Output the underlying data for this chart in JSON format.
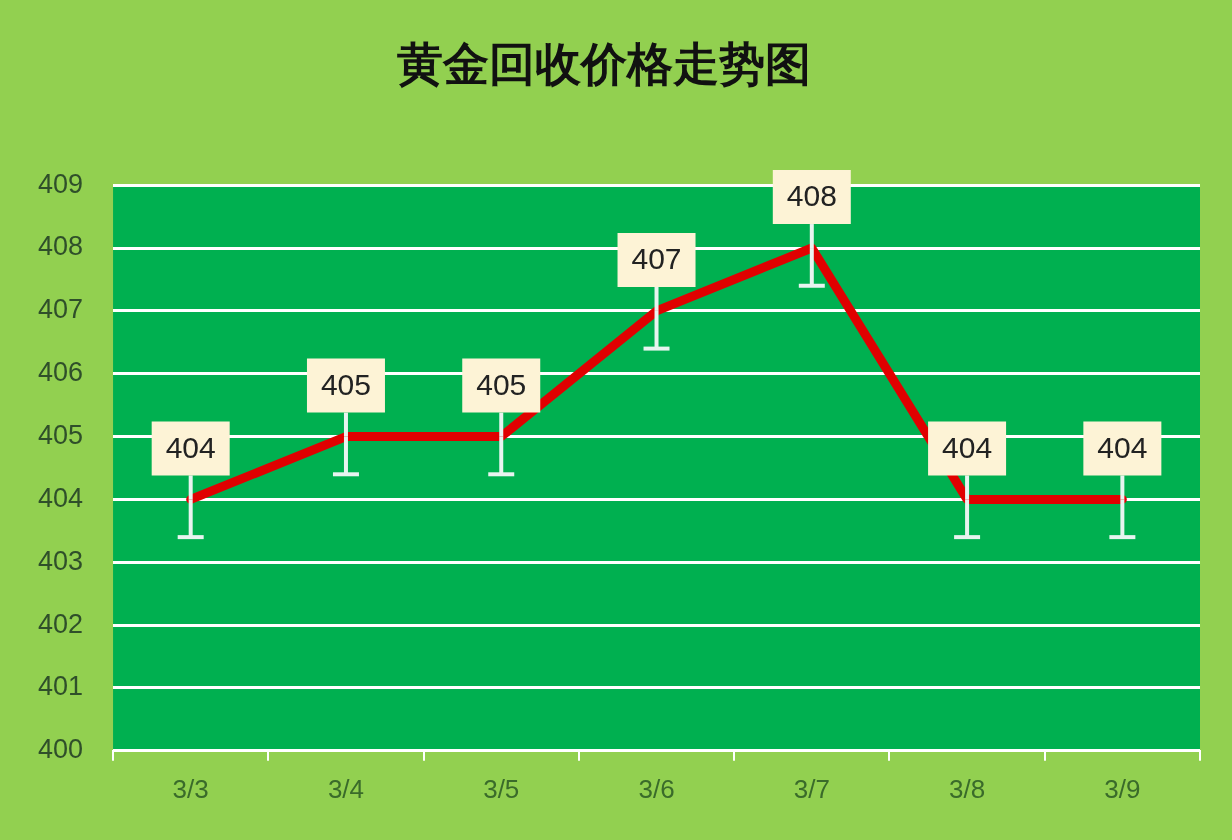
{
  "chart_data": {
    "type": "line",
    "title": "黄金回收价格走势图",
    "categories": [
      "3/3",
      "3/4",
      "3/5",
      "3/6",
      "3/7",
      "3/8",
      "3/9"
    ],
    "series": [
      {
        "color": "#e00000",
        "values": [
          404,
          405,
          405,
          407,
          408,
          404,
          404
        ],
        "errors": [
          [
            403.4,
            404
          ],
          [
            404.4,
            405
          ],
          [
            404.4,
            405
          ],
          [
            406.4,
            407
          ],
          [
            407.4,
            408
          ],
          [
            403.4,
            404
          ],
          [
            403.4,
            404
          ]
        ]
      }
    ],
    "ylim": [
      400,
      409
    ],
    "yticks": [
      400,
      401,
      402,
      403,
      404,
      405,
      406,
      407,
      408,
      409
    ],
    "grid": "y",
    "data_labels": true,
    "marker": "none",
    "line_style": "solid",
    "legend": false
  }
}
